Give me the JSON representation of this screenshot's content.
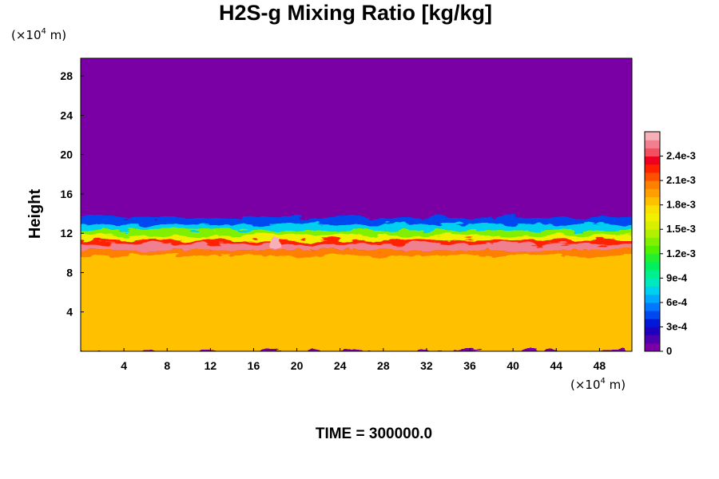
{
  "chart_data": {
    "type": "heatmap",
    "title": "H2S-g Mixing Ratio [kg/kg]",
    "xlabel": "",
    "ylabel": "Height",
    "x_unit_prefix": "(×10",
    "x_unit_exp": "4",
    "x_unit_suffix": " m)",
    "y_unit_prefix": "(×10",
    "y_unit_exp": "4",
    "y_unit_suffix": " m)",
    "xlim": [
      0,
      51
    ],
    "ylim": [
      0,
      29.8
    ],
    "x_ticks": [
      "4",
      "8",
      "12",
      "16",
      "20",
      "24",
      "28",
      "32",
      "36",
      "40",
      "44",
      "48"
    ],
    "y_ticks": [
      "4",
      "8",
      "12",
      "16",
      "20",
      "24",
      "28"
    ],
    "grid": false,
    "colorbar": {
      "min": 0,
      "max": 0.0027,
      "ticks": [
        {
          "value": 0,
          "label": "0"
        },
        {
          "value": 0.0003,
          "label": "3e-4"
        },
        {
          "value": 0.0006,
          "label": "6e-4"
        },
        {
          "value": 0.0009,
          "label": "9e-4"
        },
        {
          "value": 0.0012,
          "label": "1.2e-3"
        },
        {
          "value": 0.0015,
          "label": "1.5e-3"
        },
        {
          "value": 0.0018,
          "label": "1.8e-3"
        },
        {
          "value": 0.0021,
          "label": "2.1e-3"
        },
        {
          "value": 0.0024,
          "label": "2.4e-3"
        }
      ],
      "colors": [
        "#7a00a6",
        "#4c00b0",
        "#1e00c0",
        "#0018d8",
        "#0048f0",
        "#0078ff",
        "#00a8ff",
        "#00d0f0",
        "#00e8c0",
        "#00f090",
        "#00f060",
        "#20f030",
        "#50f000",
        "#80f000",
        "#b0f000",
        "#d8f000",
        "#f0f000",
        "#f8e000",
        "#ffc000",
        "#ffa000",
        "#ff8000",
        "#ff5000",
        "#ff2000",
        "#f00020",
        "#f05060",
        "#f08090",
        "#f8b0b8"
      ],
      "placement": "right"
    },
    "field_description_rows": [
      {
        "height_range": [
          0,
          10
        ],
        "value": 0.00185
      },
      {
        "height_range": [
          10,
          11.5
        ],
        "value": 0.0023
      },
      {
        "height_range": [
          11.5,
          13.5
        ],
        "value": 0.001
      },
      {
        "height_range": [
          13.5,
          29.8
        ],
        "value": 0
      }
    ]
  },
  "time_label": "TIME = 300000.0"
}
